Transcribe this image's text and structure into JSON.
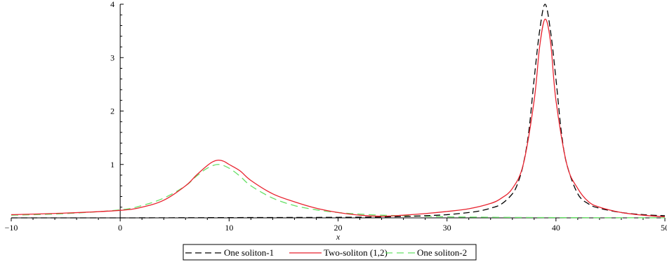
{
  "chart_data": {
    "type": "line",
    "title": "",
    "xlabel": "x",
    "ylabel": "",
    "xlim": [
      -10,
      50
    ],
    "ylim": [
      0,
      4
    ],
    "grid": false,
    "legend_position": "bottom",
    "x_ticks": [
      -10,
      0,
      10,
      20,
      30,
      40,
      50
    ],
    "y_ticks": [
      1,
      2,
      3,
      4
    ],
    "x_tick_labels": [
      "−10",
      "0",
      "10",
      "20",
      "30",
      "40",
      "50"
    ],
    "y_tick_labels": [
      "1",
      "2",
      "3",
      "4"
    ],
    "series": [
      {
        "name": "One soliton-1",
        "color": "#000000",
        "dash": "long-dash",
        "x": [
          -10,
          0,
          10,
          20,
          25,
          28,
          30,
          32,
          33,
          34,
          35,
          36,
          36.5,
          37,
          37.5,
          38,
          38.5,
          39,
          39.5,
          40,
          40.5,
          41,
          42,
          43,
          44,
          46,
          48,
          50
        ],
        "y": [
          0,
          0,
          0.005,
          0.01,
          0.02,
          0.04,
          0.06,
          0.1,
          0.13,
          0.18,
          0.26,
          0.45,
          0.65,
          1.0,
          1.6,
          2.6,
          3.5,
          4.0,
          3.5,
          2.6,
          1.6,
          1.0,
          0.45,
          0.26,
          0.18,
          0.1,
          0.06,
          0.04
        ]
      },
      {
        "name": "Two-soliton (1,2)",
        "color": "#e8222e",
        "dash": "solid",
        "x": [
          -10,
          -5,
          0,
          2,
          4,
          6,
          7,
          8,
          8.5,
          9,
          9.5,
          10,
          11,
          12,
          14,
          16,
          18,
          20,
          22,
          24,
          26,
          28,
          30,
          32,
          34,
          35,
          36,
          37,
          38,
          38.5,
          39,
          39.5,
          40,
          41,
          42,
          43,
          44,
          46,
          48,
          50
        ],
        "y": [
          0.06,
          0.09,
          0.14,
          0.2,
          0.33,
          0.6,
          0.8,
          0.98,
          1.05,
          1.08,
          1.06,
          1.0,
          0.88,
          0.7,
          0.45,
          0.3,
          0.18,
          0.1,
          0.05,
          0.03,
          0.05,
          0.08,
          0.12,
          0.17,
          0.27,
          0.37,
          0.55,
          1.0,
          2.2,
          3.2,
          3.72,
          3.3,
          2.2,
          1.0,
          0.55,
          0.3,
          0.2,
          0.1,
          0.05,
          0.02
        ]
      },
      {
        "name": "One soliton-2",
        "color": "#66e066",
        "dash": "dash",
        "x": [
          -10,
          -5,
          0,
          2,
          4,
          6,
          7,
          8,
          9,
          10,
          11,
          12,
          14,
          16,
          18,
          20,
          22,
          24,
          26,
          28,
          30,
          35,
          40,
          45,
          50
        ],
        "y": [
          0.05,
          0.08,
          0.15,
          0.23,
          0.37,
          0.6,
          0.78,
          0.93,
          1.0,
          0.93,
          0.78,
          0.6,
          0.37,
          0.23,
          0.15,
          0.1,
          0.07,
          0.05,
          0.04,
          0.03,
          0.02,
          0.01,
          0.005,
          0.003,
          0.002
        ]
      }
    ]
  }
}
